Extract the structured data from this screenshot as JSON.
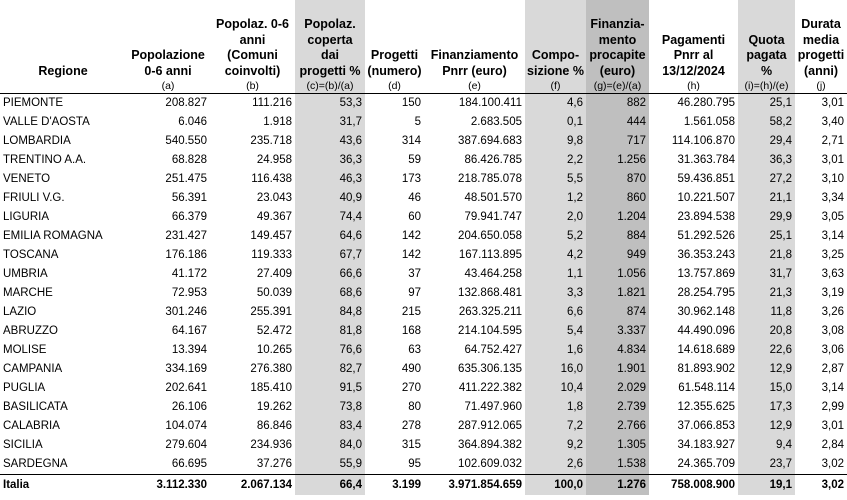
{
  "headers": [
    "Regione",
    "Popolazione\n0-6 anni",
    "Popolaz. 0-6\nanni\n(Comuni\ncoinvolti)",
    "Popolaz.\ncoperta\ndai\nprogetti %",
    "Progetti\n(numero)",
    "Finanziamento\nPnrr (euro)",
    "Compo-\nsizione %",
    "Finanzia-\nmento\nprocapite\n(euro)",
    "Pagamenti\nPnrr al\n13/12/2024",
    "Quota\npagata\n%",
    "Durata\nmedia\nprogetti\n(anni)"
  ],
  "subheaders": [
    "",
    "(a)",
    "(b)",
    "(c)=(b)/(a)",
    "(d)",
    "(e)",
    "(f)",
    "(g)=(e)/(a)",
    "(h)",
    "(i)=(h)/(e)",
    "(j)"
  ],
  "rows": [
    [
      "PIEMONTE",
      "208.827",
      "111.216",
      "53,3",
      "150",
      "184.100.411",
      "4,6",
      "882",
      "46.280.795",
      "25,1",
      "3,01"
    ],
    [
      "VALLE D'AOSTA",
      "6.046",
      "1.918",
      "31,7",
      "5",
      "2.683.505",
      "0,1",
      "444",
      "1.561.058",
      "58,2",
      "3,40"
    ],
    [
      "LOMBARDIA",
      "540.550",
      "235.718",
      "43,6",
      "314",
      "387.694.683",
      "9,8",
      "717",
      "114.106.870",
      "29,4",
      "2,71"
    ],
    [
      "TRENTINO A.A.",
      "68.828",
      "24.958",
      "36,3",
      "59",
      "86.426.785",
      "2,2",
      "1.256",
      "31.363.784",
      "36,3",
      "3,01"
    ],
    [
      "VENETO",
      "251.475",
      "116.438",
      "46,3",
      "173",
      "218.785.078",
      "5,5",
      "870",
      "59.436.851",
      "27,2",
      "3,10"
    ],
    [
      "FRIULI V.G.",
      "56.391",
      "23.043",
      "40,9",
      "46",
      "48.501.570",
      "1,2",
      "860",
      "10.221.507",
      "21,1",
      "3,34"
    ],
    [
      "LIGURIA",
      "66.379",
      "49.367",
      "74,4",
      "60",
      "79.941.747",
      "2,0",
      "1.204",
      "23.894.538",
      "29,9",
      "3,05"
    ],
    [
      "EMILIA ROMAGNA",
      "231.427",
      "149.457",
      "64,6",
      "142",
      "204.650.058",
      "5,2",
      "884",
      "51.292.526",
      "25,1",
      "3,14"
    ],
    [
      "TOSCANA",
      "176.186",
      "119.333",
      "67,7",
      "142",
      "167.113.895",
      "4,2",
      "949",
      "36.353.243",
      "21,8",
      "3,25"
    ],
    [
      "UMBRIA",
      "41.172",
      "27.409",
      "66,6",
      "37",
      "43.464.258",
      "1,1",
      "1.056",
      "13.757.869",
      "31,7",
      "3,63"
    ],
    [
      "MARCHE",
      "72.953",
      "50.039",
      "68,6",
      "97",
      "132.868.481",
      "3,3",
      "1.821",
      "28.254.795",
      "21,3",
      "3,19"
    ],
    [
      "LAZIO",
      "301.246",
      "255.391",
      "84,8",
      "215",
      "263.325.211",
      "6,6",
      "874",
      "30.962.148",
      "11,8",
      "3,26"
    ],
    [
      "ABRUZZO",
      "64.167",
      "52.472",
      "81,8",
      "168",
      "214.104.595",
      "5,4",
      "3.337",
      "44.490.096",
      "20,8",
      "3,08"
    ],
    [
      "MOLISE",
      "13.394",
      "10.265",
      "76,6",
      "63",
      "64.752.427",
      "1,6",
      "4.834",
      "14.618.689",
      "22,6",
      "3,06"
    ],
    [
      "CAMPANIA",
      "334.169",
      "276.380",
      "82,7",
      "490",
      "635.306.135",
      "16,0",
      "1.901",
      "81.893.902",
      "12,9",
      "2,87"
    ],
    [
      "PUGLIA",
      "202.641",
      "185.410",
      "91,5",
      "270",
      "411.222.382",
      "10,4",
      "2.029",
      "61.548.114",
      "15,0",
      "3,14"
    ],
    [
      "BASILICATA",
      "26.106",
      "19.262",
      "73,8",
      "80",
      "71.497.960",
      "1,8",
      "2.739",
      "12.355.625",
      "17,3",
      "2,99"
    ],
    [
      "CALABRIA",
      "104.074",
      "86.846",
      "83,4",
      "278",
      "287.912.065",
      "7,2",
      "2.766",
      "37.066.853",
      "12,9",
      "3,01"
    ],
    [
      "SICILIA",
      "279.604",
      "234.936",
      "84,0",
      "315",
      "364.894.382",
      "9,2",
      "1.305",
      "34.183.927",
      "9,4",
      "2,84"
    ],
    [
      "SARDEGNA",
      "66.695",
      "37.276",
      "55,9",
      "95",
      "102.609.032",
      "2,6",
      "1.538",
      "24.365.709",
      "23,7",
      "3,02"
    ]
  ],
  "total": [
    "Italia",
    "3.112.330",
    "2.067.134",
    "66,4",
    "3.199",
    "3.971.854.659",
    "100,0",
    "1.276",
    "758.008.900",
    "19,1",
    "3,02"
  ]
}
